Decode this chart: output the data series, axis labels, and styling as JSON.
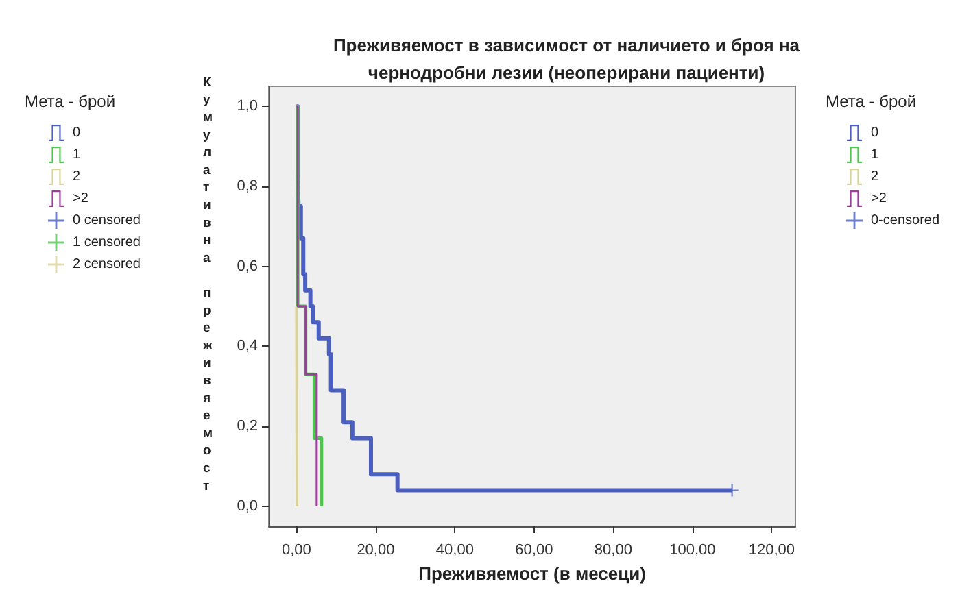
{
  "chart_data": {
    "type": "step",
    "title": "Преживяемост в зависимост от наличието и броя на\nчернодробни лезии (неоперирани пациенти)",
    "xlabel": "Преживяемост (в месеци)",
    "ylabel": "Кумулативна преживяемост",
    "legend_title": "Мета - брой",
    "series": [
      {
        "name": "0",
        "color": "#4a5fbf",
        "x": [
          0,
          0.3,
          0.5,
          1.1,
          1.7,
          2.2,
          3.5,
          4.1,
          5.6,
          8.2,
          8.7,
          11.9,
          14.1,
          18.8,
          25.5,
          110
        ],
        "values": [
          1,
          0.83,
          0.75,
          0.67,
          0.58,
          0.54,
          0.5,
          0.46,
          0.42,
          0.38,
          0.29,
          0.21,
          0.17,
          0.08,
          0.04,
          0.04
        ]
      },
      {
        "name": "1",
        "color": "#52c452",
        "x": [
          0,
          0.3,
          2.3,
          4.5,
          6.3
        ],
        "values": [
          1,
          0.5,
          0.33,
          0.17,
          0
        ]
      },
      {
        "name": "2",
        "color": "#d9d39a",
        "x": [
          0,
          0.1
        ],
        "values": [
          0.5,
          0
        ]
      },
      {
        "name": ">2",
        "color": "#9b3f9b",
        "x": [
          0,
          0.3,
          2.3,
          5.1
        ],
        "values": [
          1,
          0.5,
          0.33,
          0
        ]
      },
      {
        "name": "0 censored",
        "type": "scatter",
        "marker": "cross",
        "color": "#4a5fbf"
      },
      {
        "name": "1 censored",
        "type": "scatter",
        "marker": "cross",
        "color": "#52c452"
      },
      {
        "name": "2 censored",
        "type": "scatter",
        "marker": "cross",
        "color": "#d9d39a"
      },
      {
        "name": "0-censored",
        "type": "scatter",
        "marker": "cross",
        "color": "#4a5fbf",
        "x": [
          110
        ],
        "values": [
          0.04
        ]
      }
    ],
    "legend": [
      "left",
      "right"
    ],
    "xlim": [
      -7,
      126
    ],
    "xticks": [
      {
        "value": 0,
        "label": "0,00"
      },
      {
        "value": 20,
        "label": "20,00"
      },
      {
        "value": 40,
        "label": "40,00"
      },
      {
        "value": 60,
        "label": "60,00"
      },
      {
        "value": 80,
        "label": "80,00"
      },
      {
        "value": 100,
        "label": "100,00"
      },
      {
        "value": 120,
        "label": "120,00"
      }
    ],
    "ylim": [
      -0.05,
      1.05
    ],
    "yticks": [
      {
        "value": 0,
        "label": "0,0"
      },
      {
        "value": 0.2,
        "label": "0,2"
      },
      {
        "value": 0.4,
        "label": "0,4"
      },
      {
        "value": 0.6,
        "label": "0,6"
      },
      {
        "value": 0.8,
        "label": "0,8"
      },
      {
        "value": 1,
        "label": "1,0"
      }
    ],
    "grid": false
  }
}
